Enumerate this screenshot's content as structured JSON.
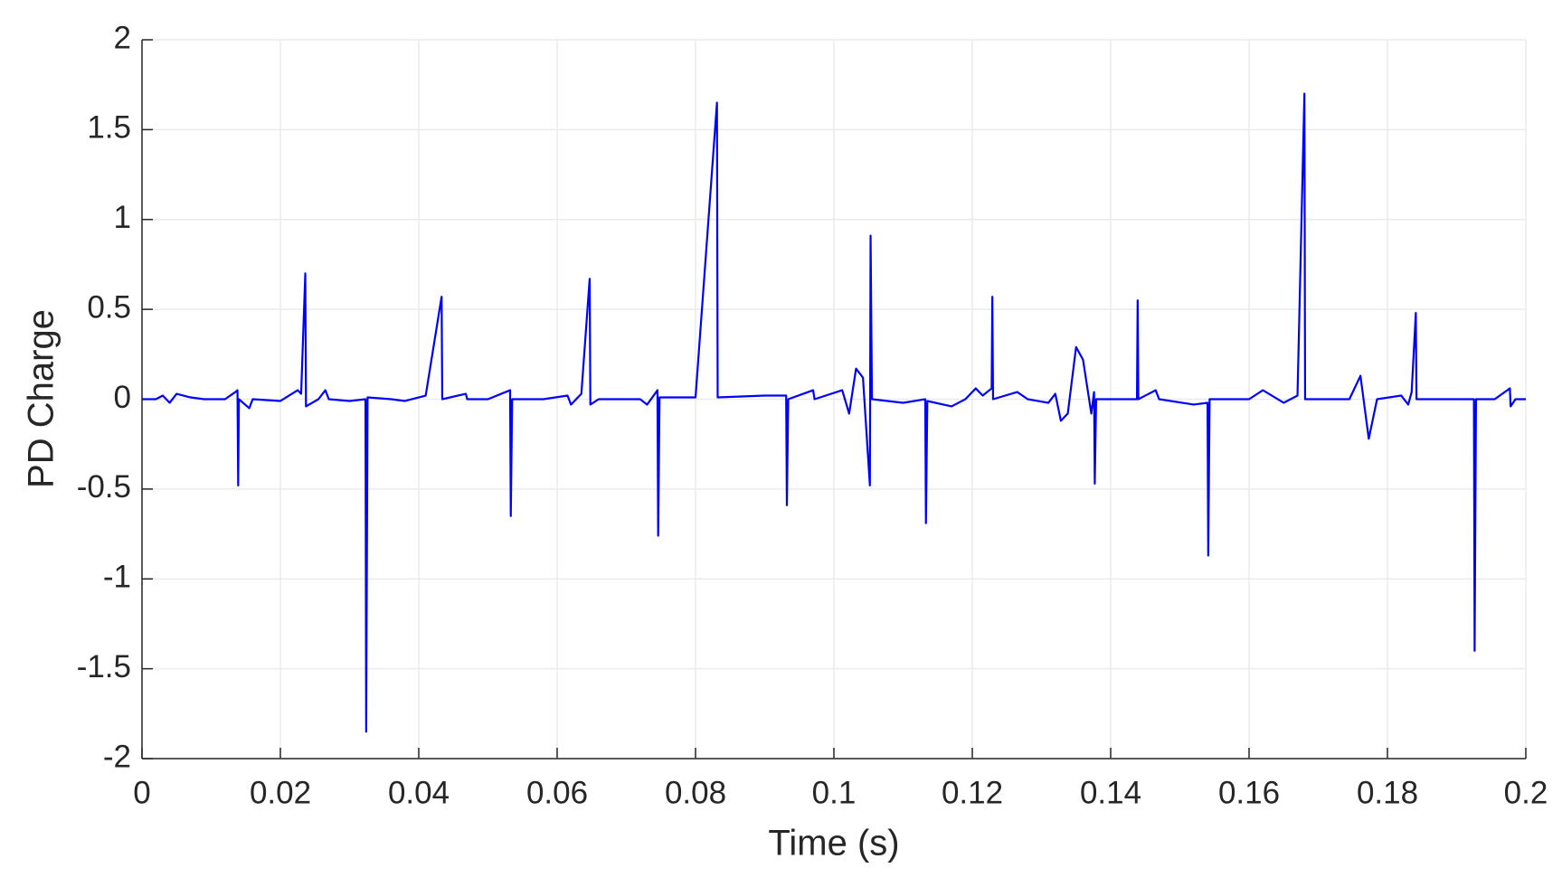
{
  "chart_data": {
    "type": "line",
    "xlabel": "Time (s)",
    "ylabel": "PD Charge",
    "x": [
      0,
      0.002,
      0.003,
      0.004,
      0.005,
      0.007,
      0.009,
      0.012,
      0.0135,
      0.0138,
      0.0139,
      0.014,
      0.0155,
      0.016,
      0.02,
      0.0225,
      0.023,
      0.0236,
      0.0237,
      0.0255,
      0.0265,
      0.027,
      0.03,
      0.0323,
      0.0324,
      0.0326,
      0.036,
      0.038,
      0.041,
      0.0433,
      0.0434,
      0.0468,
      0.047,
      0.05,
      0.0532,
      0.0533,
      0.0535,
      0.058,
      0.0615,
      0.062,
      0.0635,
      0.0647,
      0.0648,
      0.066,
      0.072,
      0.073,
      0.0745,
      0.0746,
      0.0748,
      0.08,
      0.0831,
      0.0832,
      0.09,
      0.0931,
      0.0932,
      0.0934,
      0.097,
      0.0972,
      0.1012,
      0.1022,
      0.1032,
      0.1042,
      0.1052,
      0.1053,
      0.1055,
      0.11,
      0.1132,
      0.1133,
      0.1135,
      0.117,
      0.119,
      0.1205,
      0.1215,
      0.1228,
      0.1229,
      0.123,
      0.1265,
      0.128,
      0.131,
      0.132,
      0.1328,
      0.1338,
      0.135,
      0.136,
      0.1372,
      0.1376,
      0.1377,
      0.1379,
      0.1438,
      0.1439,
      0.144,
      0.1465,
      0.147,
      0.152,
      0.154,
      0.1541,
      0.1543,
      0.16,
      0.162,
      0.165,
      0.167,
      0.168,
      0.1681,
      0.1745,
      0.1761,
      0.1773,
      0.1785,
      0.182,
      0.183,
      0.1835,
      0.1841,
      0.1842,
      0.19,
      0.1925,
      0.1926,
      0.1928,
      0.1955,
      0.1977,
      0.1978,
      0.1985,
      0.2
    ],
    "series": [
      {
        "color": "#0000ff",
        "values": [
          0,
          0,
          0.02,
          -0.02,
          0.03,
          0.01,
          0,
          0,
          0.04,
          0.05,
          -0.48,
          0,
          -0.05,
          0,
          -0.01,
          0.05,
          0.03,
          0.7,
          -0.04,
          0,
          0.05,
          0,
          -0.01,
          0,
          -1.85,
          0.01,
          0,
          -0.01,
          0.02,
          0.57,
          0,
          0.03,
          0,
          0,
          0.05,
          -0.65,
          0,
          0,
          0.02,
          -0.03,
          0.03,
          0.67,
          -0.03,
          0,
          0,
          -0.03,
          0.05,
          -0.76,
          0.01,
          0.01,
          1.65,
          0.01,
          0.02,
          0.02,
          -0.59,
          0,
          0.05,
          0,
          0.05,
          -0.08,
          0.17,
          0.12,
          -0.48,
          0.91,
          0,
          -0.02,
          0,
          -0.69,
          -0.01,
          -0.04,
          0,
          0.06,
          0.02,
          0.06,
          0.57,
          0,
          0.04,
          0,
          -0.02,
          0.03,
          -0.12,
          -0.08,
          0.29,
          0.22,
          -0.08,
          0.04,
          -0.47,
          0,
          0,
          0.55,
          0,
          0.05,
          0,
          -0.03,
          -0.02,
          -0.87,
          0,
          0,
          0.05,
          -0.02,
          0.02,
          1.7,
          0,
          0,
          0.13,
          -0.22,
          0,
          0.02,
          -0.03,
          0.04,
          0.48,
          0,
          0,
          0,
          -1.4,
          0,
          0,
          0.06,
          -0.04,
          0,
          0
        ]
      }
    ],
    "xlim": [
      0,
      0.2
    ],
    "xticks": [
      0,
      0.02,
      0.04,
      0.06,
      0.08,
      0.1,
      0.12,
      0.14,
      0.16,
      0.18,
      0.2
    ],
    "ylim": [
      -2,
      2
    ],
    "yticks": [
      -2,
      -1.5,
      -1,
      -0.5,
      0,
      0.5,
      1,
      1.5,
      2
    ],
    "grid": true
  }
}
